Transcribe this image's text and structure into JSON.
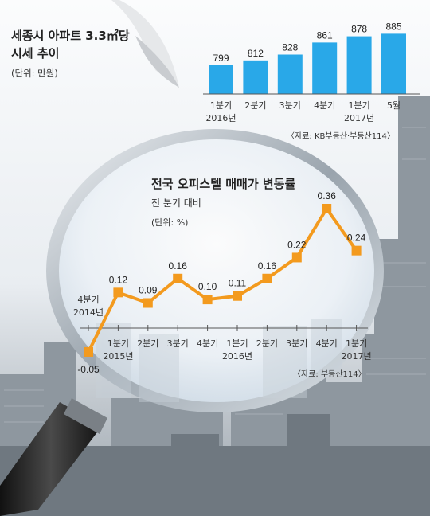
{
  "chart_data": [
    {
      "type": "bar",
      "title": "세종시 아파트 3.3㎡당\n시세 추이",
      "unit": "(단위: 만원)",
      "categories": [
        "1분기",
        "2분기",
        "3분기",
        "4분기",
        "1분기",
        "5월"
      ],
      "year_labels": [
        "2016년",
        "",
        "",
        "",
        "2017년",
        ""
      ],
      "values": [
        799,
        812,
        828,
        861,
        878,
        885
      ],
      "bar_color": "#29a8e8",
      "source": "〈자료: KB부동산·부동산114〉"
    },
    {
      "type": "line",
      "title": "전국 오피스텔 매매가 변동률",
      "subtitle": "전 분기 대비",
      "unit": "(단위: %)",
      "categories": [
        "4분기",
        "1분기",
        "2분기",
        "3분기",
        "4분기",
        "1분기",
        "2분기",
        "3분기",
        "4분기",
        "1분기"
      ],
      "year_labels": [
        "2014년",
        "2015년",
        "",
        "",
        "",
        "2016년",
        "",
        "",
        "",
        "2017년"
      ],
      "values": [
        -0.05,
        0.12,
        0.09,
        0.16,
        0.1,
        0.11,
        0.16,
        0.22,
        0.36,
        0.24
      ],
      "value_labels": [
        "-0.05",
        "0.12",
        "0.09",
        "0.16",
        "0.10",
        "0.11",
        "0.16",
        "0.22",
        "0.36",
        "0.24"
      ],
      "line_color": "#f39a1e",
      "source": "〈자료: 부동산114〉"
    }
  ]
}
